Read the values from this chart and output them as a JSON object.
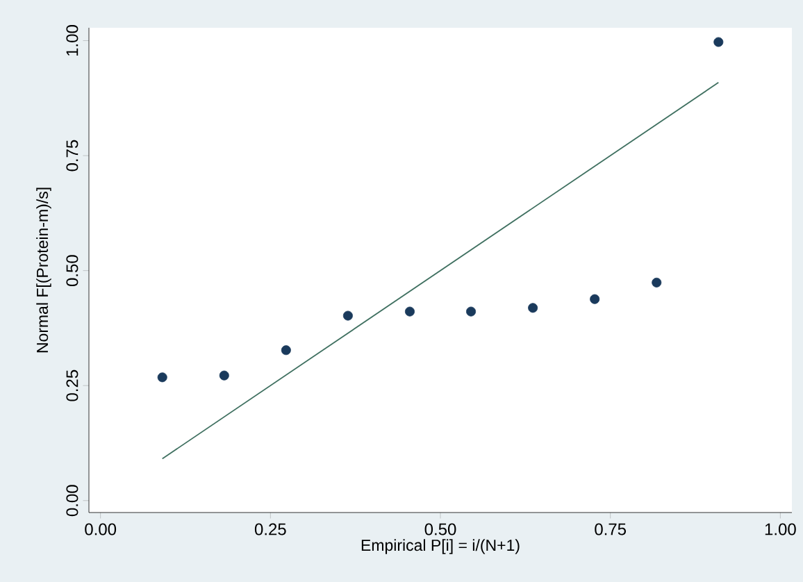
{
  "chart_data": {
    "type": "scatter",
    "xlabel": "Empirical P[i] = i/(N+1)",
    "ylabel": "Normal F[(Protein-m)/s]",
    "xlim": [
      -0.017,
      1.017
    ],
    "ylim": [
      -0.026,
      1.028
    ],
    "xticks": [
      {
        "value": 0,
        "label": "0.00"
      },
      {
        "value": 0.25,
        "label": "0.25"
      },
      {
        "value": 0.5,
        "label": "0.50"
      },
      {
        "value": 0.75,
        "label": "0.75"
      },
      {
        "value": 1,
        "label": "1.00"
      }
    ],
    "yticks": [
      {
        "value": 0,
        "label": "0.00"
      },
      {
        "value": 0.25,
        "label": "0.25"
      },
      {
        "value": 0.5,
        "label": "0.50"
      },
      {
        "value": 0.75,
        "label": "0.75"
      },
      {
        "value": 1,
        "label": "1.00"
      }
    ],
    "grid": false,
    "series": [
      {
        "marker": "circle",
        "color": "#1a3a5c",
        "x": [
          0.091,
          0.182,
          0.273,
          0.364,
          0.455,
          0.545,
          0.636,
          0.727,
          0.818,
          0.909
        ],
        "values": [
          0.268,
          0.272,
          0.327,
          0.402,
          0.411,
          0.411,
          0.419,
          0.438,
          0.474,
          0.997
        ]
      },
      {
        "type": "line",
        "marker": "none",
        "line_style": "solid",
        "color": "#3f7060",
        "x": [
          0.091,
          0.909
        ],
        "values": [
          0.091,
          0.909
        ]
      }
    ]
  }
}
